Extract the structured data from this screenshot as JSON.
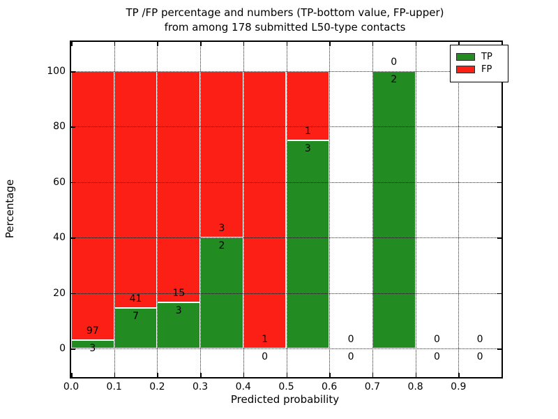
{
  "chart_data": {
    "type": "bar",
    "stacked": true,
    "title": "TP /FP percentage and numbers (TP-bottom value, FP-upper)\nfrom among 178 submitted L50-type contacts",
    "title_line1": "TP /FP percentage and numbers (TP-bottom value, FP-upper)",
    "title_line2": "from among 178 submitted L50-type contacts",
    "xlabel": "Predicted probability",
    "ylabel": "Percentage",
    "xlim": [
      0.0,
      1.0
    ],
    "ylim": [
      -10.3,
      110.6
    ],
    "grid": "dotted",
    "grid_color": "#000000",
    "legend_position": "upper right",
    "x_ticks": [
      0.0,
      0.1,
      0.2,
      0.3,
      0.4,
      0.5,
      0.6,
      0.7,
      0.8,
      0.9
    ],
    "x_tick_labels": [
      "0.0",
      "0.1",
      "0.2",
      "0.3",
      "0.4",
      "0.5",
      "0.6",
      "0.7",
      "0.8",
      "0.9"
    ],
    "y_ticks": [
      0,
      20,
      40,
      60,
      80,
      100
    ],
    "y_tick_labels": [
      "0",
      "20",
      "40",
      "60",
      "80",
      "100"
    ],
    "x_gridlines": [
      0.1,
      0.2,
      0.3,
      0.4,
      0.5,
      0.6,
      0.7,
      0.8,
      0.9
    ],
    "y_gridlines": [
      0,
      20,
      40,
      60,
      80,
      100
    ],
    "series": [
      {
        "name": "TP",
        "color": "#228b22"
      },
      {
        "name": "FP",
        "color": "#fb1f16"
      }
    ],
    "bins": [
      {
        "x0": 0.0,
        "x1": 0.1,
        "tp_count": 3,
        "fp_count": 97,
        "tp_pct": 3.0,
        "fp_pct": 97.0
      },
      {
        "x0": 0.1,
        "x1": 0.2,
        "tp_count": 7,
        "fp_count": 41,
        "tp_pct": 14.58,
        "fp_pct": 85.42
      },
      {
        "x0": 0.2,
        "x1": 0.3,
        "tp_count": 3,
        "fp_count": 15,
        "tp_pct": 16.67,
        "fp_pct": 83.33
      },
      {
        "x0": 0.3,
        "x1": 0.4,
        "tp_count": 2,
        "fp_count": 3,
        "tp_pct": 40.0,
        "fp_pct": 60.0
      },
      {
        "x0": 0.4,
        "x1": 0.5,
        "tp_count": 0,
        "fp_count": 1,
        "tp_pct": 0.0,
        "fp_pct": 100.0
      },
      {
        "x0": 0.5,
        "x1": 0.6,
        "tp_count": 3,
        "fp_count": 1,
        "tp_pct": 75.0,
        "fp_pct": 25.0
      },
      {
        "x0": 0.6,
        "x1": 0.7,
        "tp_count": 0,
        "fp_count": 0,
        "tp_pct": 0.0,
        "fp_pct": 0.0
      },
      {
        "x0": 0.7,
        "x1": 0.8,
        "tp_count": 2,
        "fp_count": 0,
        "tp_pct": 100.0,
        "fp_pct": 0.0
      },
      {
        "x0": 0.8,
        "x1": 0.9,
        "tp_count": 0,
        "fp_count": 0,
        "tp_pct": 0.0,
        "fp_pct": 0.0
      },
      {
        "x0": 0.9,
        "x1": 1.0,
        "tp_count": 0,
        "fp_count": 0,
        "tp_pct": 0.0,
        "fp_pct": 0.0
      }
    ]
  }
}
